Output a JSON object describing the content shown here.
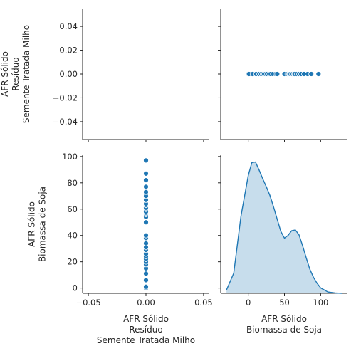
{
  "chart_data": {
    "type": "scatter",
    "kind": "pairplot",
    "variables": [
      {
        "id": "v0",
        "label_lines": [
          "AFR Sólido",
          "Resíduo",
          "Semente Tratada Milho"
        ]
      },
      {
        "id": "v1",
        "label_lines": [
          "AFR Sólido",
          "Biomassa de Soja"
        ]
      }
    ],
    "v0_range": [
      -0.055,
      0.055
    ],
    "v0_ticks": [
      -0.05,
      0.0,
      0.05
    ],
    "v0_tick_labels": [
      "−0.05",
      "0.00",
      "0.05"
    ],
    "v0_y_ticks": [
      -0.04,
      -0.02,
      0.0,
      0.02,
      0.04
    ],
    "v0_y_tick_labels": [
      "−0.04",
      "−0.02",
      "0.00",
      "0.02",
      "0.04"
    ],
    "v1_range": [
      -4,
      101
    ],
    "v1_ticks": [
      0,
      20,
      40,
      60,
      80,
      100
    ],
    "v1_tick_labels": [
      "0",
      "20",
      "40",
      "60",
      "80",
      "100"
    ],
    "v1_x_range": [
      -38,
      137
    ],
    "v1_x_ticks": [
      0,
      50,
      100
    ],
    "v1_x_tick_labels": [
      "0",
      "50",
      "100"
    ],
    "v1_values": [
      0,
      1,
      6,
      11,
      15,
      18,
      20,
      22,
      24,
      26,
      29,
      31,
      34,
      38,
      40,
      50,
      54,
      56,
      57,
      58,
      60,
      61,
      63,
      64,
      67,
      70,
      73,
      77,
      82,
      87,
      97
    ],
    "v0_values_all": 0,
    "kde": {
      "x": [
        -30,
        -20,
        -10,
        0,
        5,
        10,
        15,
        20,
        25,
        30,
        35,
        40,
        45,
        50,
        55,
        60,
        65,
        70,
        75,
        80,
        85,
        90,
        95,
        100,
        110,
        120,
        130
      ],
      "density": [
        0.0005,
        0.003,
        0.0115,
        0.0175,
        0.0194,
        0.0195,
        0.0183,
        0.017,
        0.0158,
        0.0145,
        0.0128,
        0.011,
        0.0092,
        0.0082,
        0.0086,
        0.0093,
        0.0094,
        0.0087,
        0.0071,
        0.0053,
        0.0036,
        0.0024,
        0.0015,
        0.0008,
        0.0002,
        5e-05,
        0.0
      ],
      "ymax": 0.0205
    },
    "grid": false,
    "legend": "none"
  }
}
